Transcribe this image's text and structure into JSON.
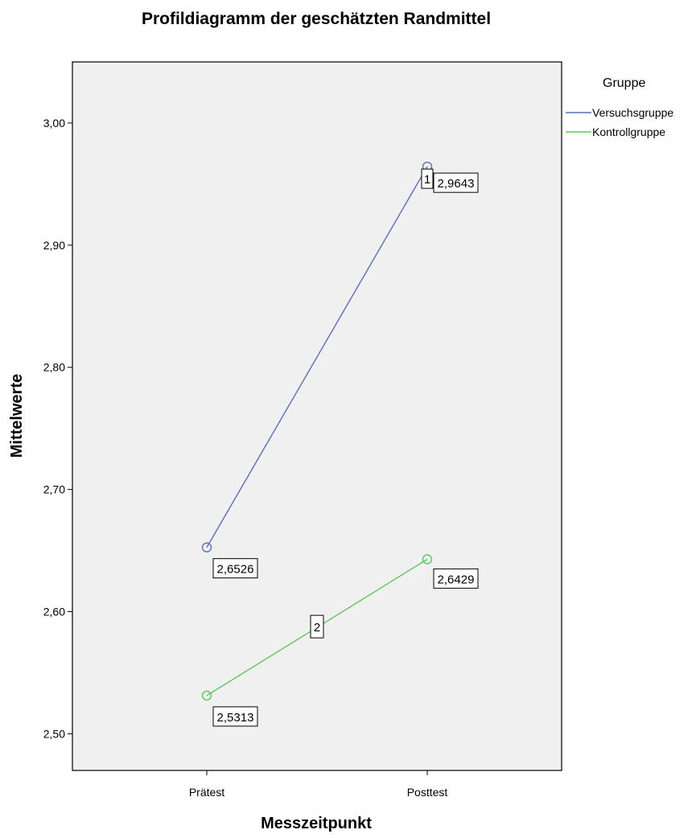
{
  "chart_data": {
    "type": "line",
    "title": "Profildiagramm der geschätzten Randmittel",
    "xlabel": "Messzeitpunkt",
    "ylabel": "Mittelwerte",
    "categories": [
      "Prätest",
      "Posttest"
    ],
    "ylim": [
      2.47,
      3.05
    ],
    "yticks": [
      "2,50",
      "2,60",
      "2,70",
      "2,80",
      "2,90",
      "3,00"
    ],
    "legend_title": "Gruppe",
    "legend_position": "top-right",
    "grid": false,
    "series": [
      {
        "name": "Versuchsgruppe",
        "color": "#5a6fb5",
        "values": [
          2.6526,
          2.9643
        ],
        "data_labels": [
          "2,6526",
          "2,9643"
        ],
        "line_id": "1"
      },
      {
        "name": "Kontrollgruppe",
        "color": "#5fc85f",
        "values": [
          2.5313,
          2.6429
        ],
        "data_labels": [
          "2,5313",
          "2,6429"
        ],
        "line_id": "2"
      }
    ]
  }
}
